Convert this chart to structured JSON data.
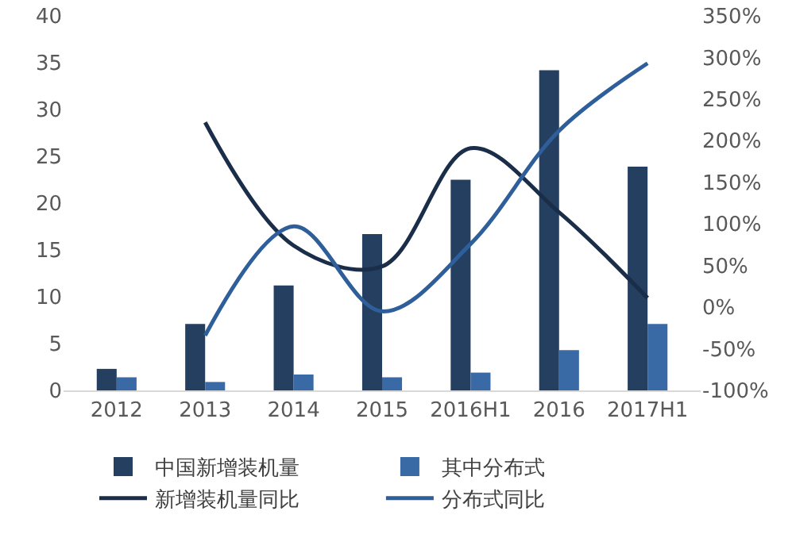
{
  "chart_data": {
    "type": "bar",
    "categories": [
      "2012",
      "2013",
      "2014",
      "2015",
      "2016H1",
      "2016",
      "2017H1"
    ],
    "series": [
      {
        "name": "中国新增装机量",
        "color": "#243f60",
        "values": [
          2.3,
          7.1,
          11.2,
          16.7,
          22.5,
          34.2,
          23.9
        ]
      },
      {
        "name": "其中分布式",
        "color": "#3a6aa6",
        "values": [
          1.4,
          0.9,
          1.7,
          1.4,
          1.9,
          4.3,
          7.1
        ]
      },
      {
        "name": "新增装机量同比",
        "type": "line",
        "axis": "y2",
        "color": "#1a2e4a",
        "values": [
          null,
          222,
          74,
          49,
          191,
          114,
          11
        ]
      },
      {
        "name": "分布式同比",
        "type": "line",
        "axis": "y2",
        "color": "#2f5f9a",
        "values": [
          null,
          -34,
          97,
          -5,
          76,
          212,
          293
        ]
      }
    ],
    "ylim": [
      0,
      40
    ],
    "yticks": [
      0,
      5,
      10,
      15,
      20,
      25,
      30,
      35,
      40
    ],
    "y2lim": [
      -100,
      350
    ],
    "y2ticks": [
      {
        "value": -100,
        "label": "-100%"
      },
      {
        "value": -50,
        "label": "-50%"
      },
      {
        "value": 0,
        "label": "0%"
      },
      {
        "value": 50,
        "label": "50%"
      },
      {
        "value": 100,
        "label": "100%"
      },
      {
        "value": 150,
        "label": "150%"
      },
      {
        "value": 200,
        "label": "200%"
      },
      {
        "value": 250,
        "label": "250%"
      },
      {
        "value": 300,
        "label": "300%"
      },
      {
        "value": 350,
        "label": "350%"
      }
    ],
    "grid": false,
    "legend": "bottom",
    "marker": "none"
  }
}
